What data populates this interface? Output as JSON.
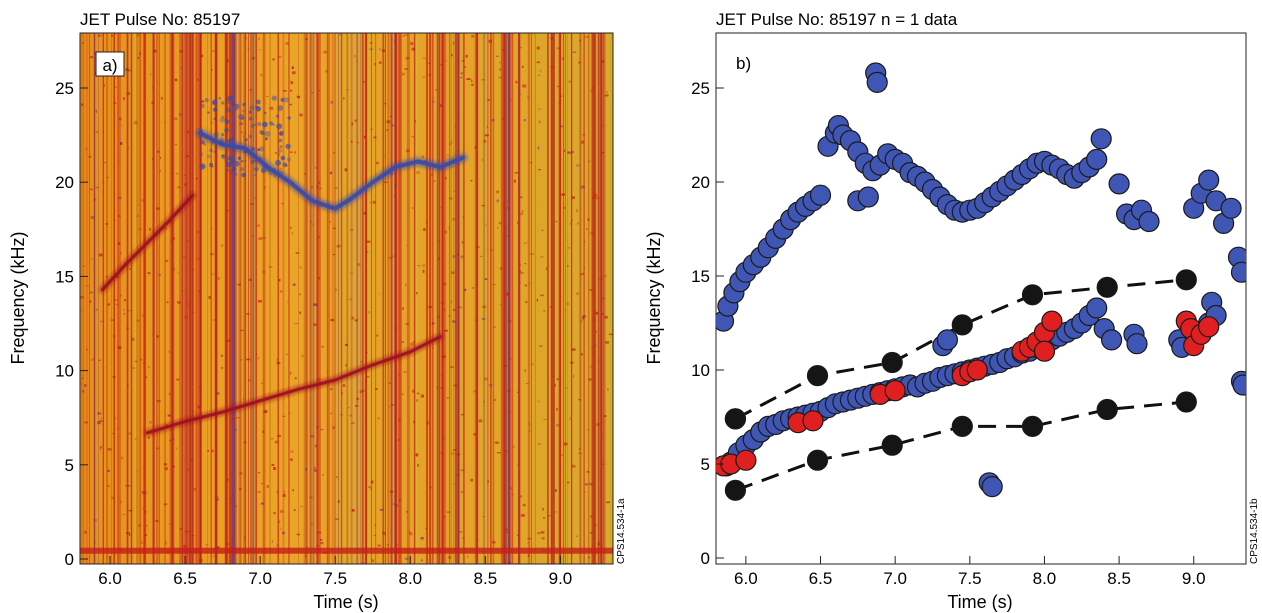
{
  "panels": {
    "a": {
      "title": "JET Pulse No: 85197",
      "panel_label": "a)",
      "xlabel": "Time (s)",
      "ylabel": "Frequency (kHz)",
      "side_code": "CPS14.534-1a",
      "xticks": [
        "6.0",
        "6.5",
        "7.0",
        "7.5",
        "8.0",
        "8.5",
        "9.0"
      ],
      "yticks": [
        "0",
        "5",
        "10",
        "15",
        "20",
        "25"
      ]
    },
    "b": {
      "title": "JET Pulse No: 85197 n = 1 data",
      "panel_label": "b)",
      "xlabel": "Time (s)",
      "ylabel": "Frequency (kHz)",
      "side_code": "CPS14.534-1b",
      "xticks": [
        "6.0",
        "6.5",
        "7.0",
        "7.5",
        "8.0",
        "8.5",
        "9.0"
      ],
      "yticks": [
        "0",
        "5",
        "10",
        "15",
        "20",
        "25"
      ]
    }
  },
  "colors": {
    "spectro_bg": "#e8a020",
    "spectro_red": "#c41e18",
    "spectro_blue": "#3a4aa8",
    "marker_blue": "#3f56b5",
    "marker_red": "#e02020",
    "marker_black": "#151515"
  },
  "chart_data": [
    {
      "type": "heatmap",
      "title": "JET Pulse No: 85197",
      "xlabel": "Time (s)",
      "ylabel": "Frequency (kHz)",
      "xlim": [
        5.8,
        9.35
      ],
      "ylim": [
        0,
        28
      ],
      "mode_traces": [
        {
          "color": "red",
          "x": [
            5.95,
            6.1,
            6.25,
            6.4,
            6.55
          ],
          "y": [
            14.3,
            15.6,
            16.8,
            18.0,
            19.3
          ]
        },
        {
          "color": "blue",
          "x": [
            6.6,
            6.75,
            6.9,
            7.05,
            7.2,
            7.35,
            7.5,
            7.6,
            7.75,
            7.9,
            8.05,
            8.2,
            8.35
          ],
          "y": [
            22.6,
            22.0,
            21.8,
            20.8,
            20.0,
            19.0,
            18.6,
            19.1,
            20.0,
            20.8,
            21.1,
            20.8,
            21.3
          ]
        },
        {
          "color": "red",
          "x": [
            6.25,
            6.5,
            6.75,
            7.0,
            7.25,
            7.5,
            7.75,
            8.0,
            8.2
          ],
          "y": [
            6.7,
            7.3,
            7.8,
            8.4,
            9.0,
            9.5,
            10.3,
            11.0,
            11.8
          ]
        }
      ]
    },
    {
      "type": "scatter",
      "title": "JET Pulse No: 85197 n = 1 data",
      "xlabel": "Time (s)",
      "ylabel": "Frequency (kHz)",
      "xlim": [
        5.8,
        9.35
      ],
      "ylim": [
        0,
        28
      ],
      "series": [
        {
          "color": "blue",
          "x": [
            5.85,
            5.88,
            5.92,
            5.96,
            6.0,
            6.05,
            6.1,
            6.15,
            6.2,
            6.25,
            6.3,
            6.35,
            6.4,
            6.45,
            6.5,
            6.55,
            6.6,
            6.62,
            6.65,
            6.7,
            6.75,
            6.8,
            6.85,
            6.9,
            6.95,
            7.0,
            7.05,
            7.1,
            7.15,
            7.2,
            7.25,
            7.3,
            7.35,
            7.4,
            7.45,
            7.5,
            7.55,
            7.6,
            7.65,
            7.7,
            7.75,
            7.8,
            7.85,
            7.9,
            7.95,
            8.0,
            8.05,
            8.1,
            8.15,
            8.2,
            8.25,
            8.3,
            8.35,
            8.38,
            6.87,
            6.88,
            6.75,
            6.82,
            8.5,
            8.55,
            8.6,
            8.65,
            8.7,
            9.0,
            9.05,
            9.1,
            9.15,
            9.2,
            9.25,
            9.3,
            9.32,
            5.87,
            5.9,
            5.95,
            6.0,
            6.05,
            6.1,
            6.15,
            6.2,
            6.25,
            6.3,
            6.35,
            6.4,
            6.45,
            6.5,
            6.55,
            6.6,
            6.65,
            6.7,
            6.75,
            6.8,
            6.85,
            6.9,
            6.95,
            7.0,
            7.05,
            7.1,
            7.15,
            7.2,
            7.25,
            7.3,
            7.35,
            7.4,
            7.45,
            7.5,
            7.55,
            7.6,
            7.65,
            7.7,
            7.75,
            7.8,
            7.85,
            7.9,
            7.95,
            8.0,
            8.05,
            8.1,
            8.15,
            8.2,
            8.25,
            8.3,
            8.35,
            8.4,
            8.45,
            7.32,
            7.35,
            7.63,
            7.65,
            8.6,
            8.62,
            8.9,
            8.92,
            9.1,
            9.12,
            9.15,
            9.32,
            9.33
          ],
          "y": [
            12.6,
            13.4,
            14.1,
            14.7,
            15.2,
            15.6,
            16.0,
            16.5,
            17.0,
            17.5,
            18.0,
            18.4,
            18.7,
            19.0,
            19.3,
            21.9,
            22.6,
            23.0,
            22.5,
            22.2,
            21.6,
            21.0,
            20.6,
            20.9,
            21.5,
            21.2,
            21.0,
            20.5,
            20.3,
            20.0,
            19.6,
            19.2,
            18.8,
            18.5,
            18.4,
            18.5,
            18.6,
            18.9,
            19.2,
            19.5,
            19.8,
            20.1,
            20.4,
            20.7,
            21.0,
            21.1,
            20.9,
            20.7,
            20.4,
            20.2,
            20.5,
            20.8,
            21.2,
            22.3,
            25.8,
            25.3,
            19.0,
            19.2,
            19.9,
            18.3,
            18.0,
            18.5,
            17.9,
            18.6,
            19.4,
            20.1,
            19.0,
            17.8,
            18.6,
            16.0,
            15.2,
            4.9,
            5.1,
            5.6,
            6.0,
            6.3,
            6.7,
            7.0,
            7.1,
            7.3,
            7.4,
            7.5,
            7.6,
            7.7,
            7.8,
            8.0,
            8.2,
            8.3,
            8.4,
            8.5,
            8.6,
            8.7,
            8.8,
            8.9,
            9.0,
            9.1,
            9.2,
            9.1,
            9.3,
            9.4,
            9.6,
            9.7,
            9.8,
            9.9,
            10.0,
            10.1,
            10.2,
            10.3,
            10.4,
            10.6,
            10.7,
            10.9,
            11.0,
            11.2,
            11.4,
            11.6,
            11.8,
            12.0,
            12.2,
            12.5,
            12.9,
            13.3,
            12.2,
            11.6,
            11.3,
            11.6,
            4.0,
            3.8,
            11.9,
            11.4,
            11.6,
            11.2,
            12.5,
            13.6,
            12.9,
            9.4,
            9.2
          ]
        },
        {
          "color": "red",
          "x": [
            5.85,
            5.9,
            6.0,
            6.35,
            6.45,
            6.9,
            7.0,
            7.45,
            7.5,
            7.55,
            7.85,
            7.9,
            7.95,
            8.0,
            8.05,
            8.0,
            8.95,
            8.98,
            9.0,
            9.05,
            9.1
          ],
          "y": [
            4.9,
            5.0,
            5.2,
            7.2,
            7.3,
            8.7,
            8.9,
            9.7,
            9.9,
            10.0,
            11.0,
            11.2,
            11.5,
            12.0,
            12.6,
            11.0,
            12.6,
            12.2,
            11.3,
            11.9,
            12.3
          ]
        },
        {
          "color": "black",
          "x": [
            5.93,
            5.93,
            5.93,
            6.48,
            6.48,
            6.98,
            6.98,
            7.45,
            7.45,
            7.92,
            7.92,
            8.42,
            8.42,
            8.95,
            8.95
          ],
          "y": [
            3.6,
            7.4,
            7.4,
            5.2,
            9.7,
            6.0,
            10.4,
            7.0,
            12.4,
            7.0,
            14.0,
            7.9,
            14.4,
            8.3,
            14.8
          ]
        }
      ],
      "fit_lines": [
        {
          "style": "dashed",
          "x": [
            5.93,
            6.48,
            6.98,
            7.45,
            7.92,
            8.42,
            8.95
          ],
          "y": [
            7.4,
            9.7,
            10.4,
            12.4,
            14.0,
            14.4,
            14.8
          ]
        },
        {
          "style": "dashed",
          "x": [
            5.93,
            6.48,
            6.98,
            7.45,
            7.92,
            8.42,
            8.95
          ],
          "y": [
            3.6,
            5.2,
            6.0,
            7.0,
            7.0,
            7.9,
            8.3
          ]
        }
      ]
    }
  ]
}
